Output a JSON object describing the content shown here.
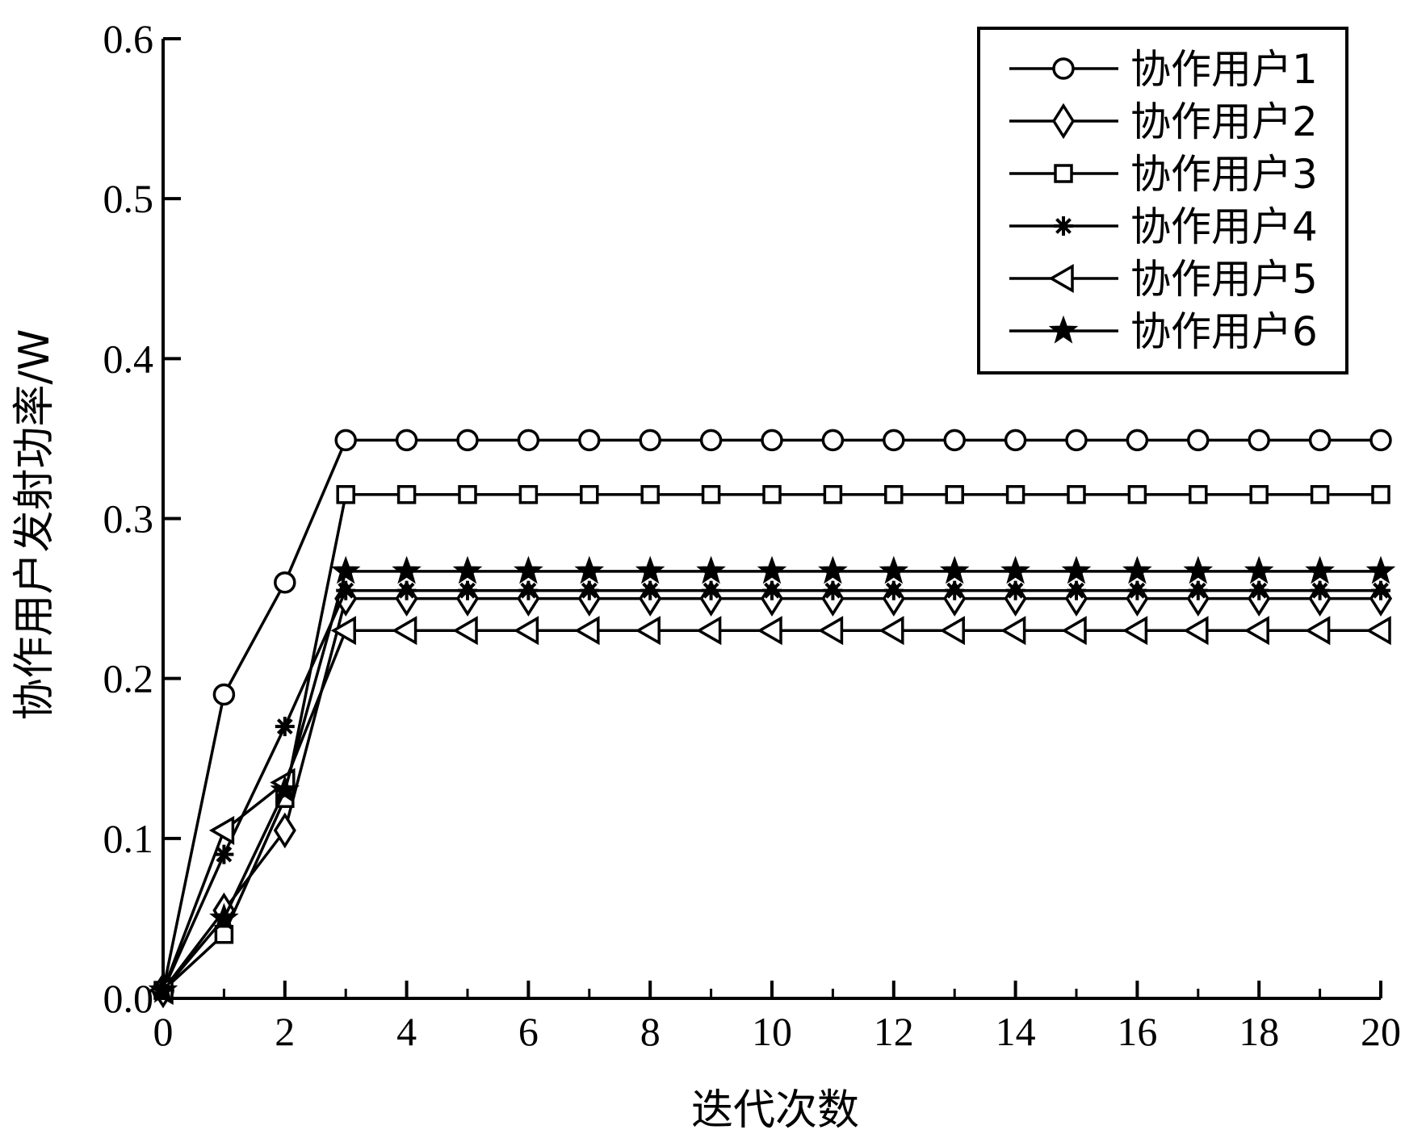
{
  "chart_data": {
    "type": "line",
    "title": "",
    "xlabel": "迭代次数",
    "ylabel": "协作用户发射功率/W",
    "xlim": [
      0,
      20
    ],
    "ylim": [
      0,
      0.6
    ],
    "xticks": [
      0,
      2,
      4,
      6,
      8,
      10,
      12,
      14,
      16,
      18,
      20
    ],
    "xtick_labels": [
      "0",
      "2",
      "4",
      "6",
      "8",
      "10",
      "12",
      "14",
      "16",
      "18",
      "20"
    ],
    "yticks": [
      0,
      0.1,
      0.2,
      0.3,
      0.4,
      0.5,
      0.6
    ],
    "ytick_labels": [
      "0.0",
      "0.1",
      "0.2",
      "0.3",
      "0.4",
      "0.5",
      "0.6"
    ],
    "grid": false,
    "legend_position": "top-right",
    "x": [
      0,
      1,
      2,
      3,
      4,
      5,
      6,
      7,
      8,
      9,
      10,
      11,
      12,
      13,
      14,
      15,
      16,
      17,
      18,
      19,
      20
    ],
    "series": [
      {
        "name": "协作用户1",
        "marker": "circle",
        "values": [
          0.005,
          0.19,
          0.26,
          0.349,
          0.349,
          0.349,
          0.349,
          0.349,
          0.349,
          0.349,
          0.349,
          0.349,
          0.349,
          0.349,
          0.349,
          0.349,
          0.349,
          0.349,
          0.349,
          0.349,
          0.349
        ]
      },
      {
        "name": "协作用户2",
        "marker": "diamond",
        "values": [
          0.005,
          0.055,
          0.105,
          0.25,
          0.25,
          0.25,
          0.25,
          0.25,
          0.25,
          0.25,
          0.25,
          0.25,
          0.25,
          0.25,
          0.25,
          0.25,
          0.25,
          0.25,
          0.25,
          0.25,
          0.25
        ]
      },
      {
        "name": "协作用户3",
        "marker": "square",
        "values": [
          0.005,
          0.04,
          0.125,
          0.315,
          0.315,
          0.315,
          0.315,
          0.315,
          0.315,
          0.315,
          0.315,
          0.315,
          0.315,
          0.315,
          0.315,
          0.315,
          0.315,
          0.315,
          0.315,
          0.315,
          0.315
        ]
      },
      {
        "name": "协作用户4",
        "marker": "asterisk",
        "values": [
          0.005,
          0.09,
          0.17,
          0.255,
          0.255,
          0.255,
          0.255,
          0.255,
          0.255,
          0.255,
          0.255,
          0.255,
          0.255,
          0.255,
          0.255,
          0.255,
          0.255,
          0.255,
          0.255,
          0.255,
          0.255
        ]
      },
      {
        "name": "协作用户5",
        "marker": "triangle-left",
        "values": [
          0.005,
          0.105,
          0.135,
          0.23,
          0.23,
          0.23,
          0.23,
          0.23,
          0.23,
          0.23,
          0.23,
          0.23,
          0.23,
          0.23,
          0.23,
          0.23,
          0.23,
          0.23,
          0.23,
          0.23,
          0.23
        ]
      },
      {
        "name": "协作用户6",
        "marker": "star",
        "values": [
          0.005,
          0.05,
          0.13,
          0.267,
          0.267,
          0.267,
          0.267,
          0.267,
          0.267,
          0.267,
          0.267,
          0.267,
          0.267,
          0.267,
          0.267,
          0.267,
          0.267,
          0.267,
          0.267,
          0.267,
          0.267
        ]
      }
    ]
  }
}
